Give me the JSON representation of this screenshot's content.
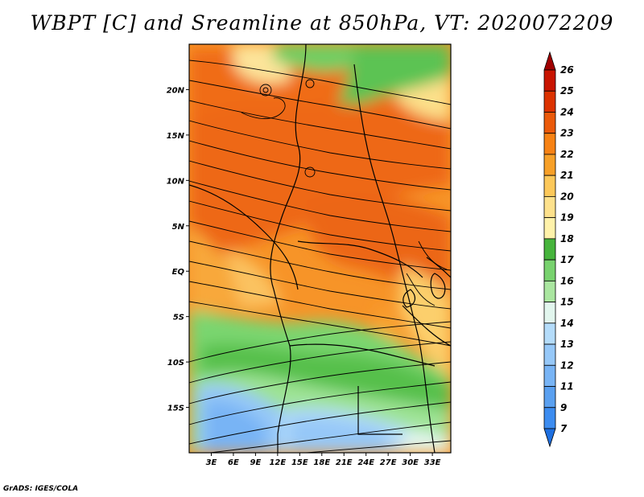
{
  "title": "WBPT [C] and Sreamline at 850hPa, VT: 2020072209",
  "credit": "GrADS: IGES/COLA",
  "map": {
    "lon_range": [
      0,
      35.5
    ],
    "lat_range": [
      -20,
      25
    ],
    "lat_ticks": [
      {
        "value": 20,
        "label": "20N"
      },
      {
        "value": 15,
        "label": "15N"
      },
      {
        "value": 10,
        "label": "10N"
      },
      {
        "value": 5,
        "label": "5N"
      },
      {
        "value": 0,
        "label": "EQ"
      },
      {
        "value": -5,
        "label": "5S"
      },
      {
        "value": -10,
        "label": "10S"
      },
      {
        "value": -15,
        "label": "15S"
      }
    ],
    "lon_ticks": [
      {
        "value": 3,
        "label": "3E"
      },
      {
        "value": 6,
        "label": "6E"
      },
      {
        "value": 9,
        "label": "9E"
      },
      {
        "value": 12,
        "label": "12E"
      },
      {
        "value": 15,
        "label": "15E"
      },
      {
        "value": 18,
        "label": "18E"
      },
      {
        "value": 21,
        "label": "21E"
      },
      {
        "value": 24,
        "label": "24E"
      },
      {
        "value": 27,
        "label": "27E"
      },
      {
        "value": 30,
        "label": "30E"
      },
      {
        "value": 33,
        "label": "33E"
      }
    ]
  },
  "colorbar": {
    "levels": [
      "7",
      "9",
      "11",
      "12",
      "13",
      "14",
      "15",
      "16",
      "17",
      "18",
      "19",
      "20",
      "21",
      "22",
      "23",
      "24",
      "25",
      "26"
    ],
    "colors": [
      "#1e6fe0",
      "#3c8cf0",
      "#5aa0f0",
      "#78b4f5",
      "#96c8f8",
      "#b4dcfa",
      "#e2f6ee",
      "#aae6a0",
      "#78d26e",
      "#46b43c",
      "#fff2aa",
      "#fde18c",
      "#fcc85a",
      "#f7a028",
      "#f78214",
      "#eb5a0a",
      "#dc3200",
      "#c81400",
      "#a00000"
    ]
  }
}
